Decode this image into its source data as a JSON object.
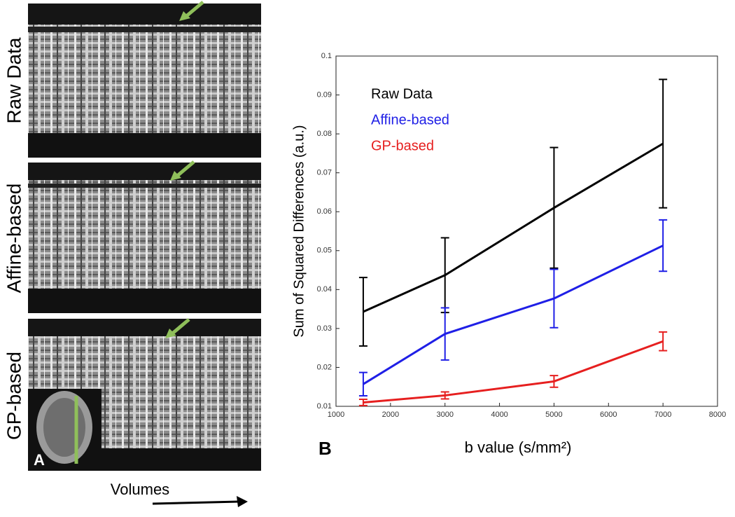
{
  "panels": [
    {
      "label": "Raw Data"
    },
    {
      "label": "Affine-based"
    },
    {
      "label": "GP-based"
    }
  ],
  "panel_a_label": "A",
  "x_arrow_label": "Volumes",
  "panel_b_label": "B",
  "chart_data": {
    "type": "line",
    "xlabel": "b value (s/mm²)",
    "ylabel": "Sum of Squared Differences (a.u.)",
    "x": [
      1500,
      3000,
      5000,
      7000
    ],
    "series": [
      {
        "name": "Raw Data",
        "color": "#000000",
        "values": [
          0.0343,
          0.0437,
          0.061,
          0.0775
        ],
        "errors": [
          0.0088,
          0.0096,
          0.0155,
          0.0165
        ]
      },
      {
        "name": "Affine-based",
        "color": "#1f1fe6",
        "values": [
          0.0157,
          0.0286,
          0.0377,
          0.0513
        ],
        "errors": [
          0.003,
          0.0067,
          0.0075,
          0.0066
        ]
      },
      {
        "name": "GP-based",
        "color": "#e61f1f",
        "values": [
          0.011,
          0.0128,
          0.0164,
          0.0267
        ],
        "errors": [
          0.0008,
          0.0009,
          0.0015,
          0.0024
        ]
      }
    ],
    "xlim": [
      1000,
      8000
    ],
    "xticks": [
      1000,
      2000,
      3000,
      4000,
      5000,
      6000,
      7000,
      8000
    ],
    "ylim": [
      0.01,
      0.1
    ],
    "yticks": [
      0.01,
      0.02,
      0.03,
      0.04,
      0.05,
      0.06,
      0.07,
      0.08,
      0.09,
      0.1
    ],
    "legend": "upper left"
  }
}
